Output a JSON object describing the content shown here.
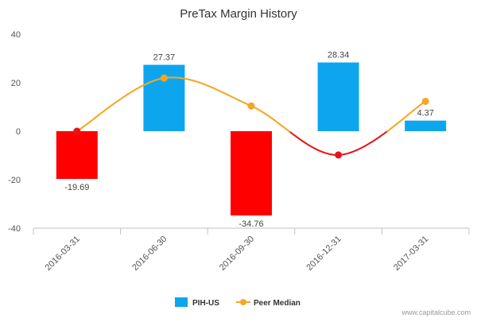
{
  "chart_data": {
    "type": "bar",
    "title": "PreTax Margin History",
    "categories": [
      "2016-03-31",
      "2016-06-30",
      "2016-09-30",
      "2016-12-31",
      "2017-03-31"
    ],
    "ylim": [
      -40,
      40
    ],
    "yticks": [
      40,
      20,
      0,
      -20,
      -40
    ],
    "grid": false,
    "legend_position": "bottom-center",
    "series": [
      {
        "name": "PIH-US",
        "kind": "bar",
        "values": [
          -19.69,
          27.37,
          -34.76,
          28.34,
          4.37
        ],
        "labels": [
          "-19.69",
          "27.37",
          "-34.76",
          "28.34",
          "4.37"
        ],
        "color_positive": "#0ea5ef",
        "color_negative": "#ff0000"
      },
      {
        "name": "Peer Median",
        "kind": "line",
        "values": [
          0.0,
          21.9,
          10.4,
          -9.8,
          12.3
        ],
        "color_positive": "#f5a623",
        "color_negative": "#e8131a"
      }
    ]
  },
  "watermark": "www.capitalcube.com"
}
